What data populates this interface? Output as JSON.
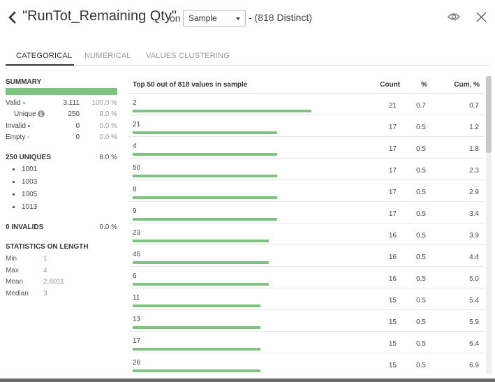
{
  "header": {
    "title": "\"RunTot_Remaining Qty\"",
    "on_label": "on",
    "sample_value": "Sample",
    "distinct": "- (818 Distinct)"
  },
  "tabs": [
    {
      "label": "CATEGORICAL",
      "active": true
    },
    {
      "label": "NUMERICAL",
      "active": false
    },
    {
      "label": "VALUES CLUSTERING",
      "active": false
    }
  ],
  "summary": {
    "title": "SUMMARY",
    "bar_color": "#7cc47f",
    "rows": [
      {
        "label": "Valid",
        "value": "3,111",
        "pct": "100.0 %",
        "dot_color": "#7cc47f"
      },
      {
        "label": "Unique",
        "value": "250",
        "pct": "8.0 %",
        "info_icon": "info-icon"
      },
      {
        "label": "Invalid",
        "value": "0",
        "pct": "0.0 %",
        "dot_color": "#d9534f"
      },
      {
        "label": "Empty",
        "value": "0",
        "pct": "0.0 %",
        "dot_color": "#cccccc"
      }
    ]
  },
  "uniques": {
    "title": "250 UNIQUES",
    "pct": "8.0 %",
    "items": [
      "1001",
      "1003",
      "1005",
      "1013"
    ]
  },
  "invalids": {
    "title": "0 INVALIDS",
    "pct": "0.0 %"
  },
  "length_stats": {
    "title": "STATISTICS ON LENGTH",
    "rows": [
      {
        "label": "Min",
        "value": "1"
      },
      {
        "label": "Max",
        "value": "4"
      },
      {
        "label": "Mean",
        "value": "2.6011"
      },
      {
        "label": "Median",
        "value": "3"
      }
    ]
  },
  "table": {
    "headers": {
      "value": "Top 50 out of 818 values in sample",
      "count": "Count",
      "pct": "%",
      "cum": "Cum. %"
    },
    "bar_color": "#7cc47f",
    "rows": [
      {
        "value": "2",
        "count": "21",
        "pct": "0.7",
        "cum": "0.7",
        "share": 0.7
      },
      {
        "value": "21",
        "count": "17",
        "pct": "0.5",
        "cum": "1.2",
        "share": 0.5
      },
      {
        "value": "4",
        "count": "17",
        "pct": "0.5",
        "cum": "1.8",
        "share": 0.5
      },
      {
        "value": "50",
        "count": "17",
        "pct": "0.5",
        "cum": "2.3",
        "share": 0.5
      },
      {
        "value": "8",
        "count": "17",
        "pct": "0.5",
        "cum": "2.9",
        "share": 0.5
      },
      {
        "value": "9",
        "count": "17",
        "pct": "0.5",
        "cum": "3.4",
        "share": 0.5
      },
      {
        "value": "23",
        "count": "16",
        "pct": "0.5",
        "cum": "3.9",
        "share": 0.5
      },
      {
        "value": "46",
        "count": "16",
        "pct": "0.5",
        "cum": "4.4",
        "share": 0.5
      },
      {
        "value": "6",
        "count": "16",
        "pct": "0.5",
        "cum": "5.0",
        "share": 0.5
      },
      {
        "value": "11",
        "count": "15",
        "pct": "0.5",
        "cum": "5.4",
        "share": 0.5
      },
      {
        "value": "13",
        "count": "15",
        "pct": "0.5",
        "cum": "5.9",
        "share": 0.5
      },
      {
        "value": "17",
        "count": "15",
        "pct": "0.5",
        "cum": "6.4",
        "share": 0.5
      },
      {
        "value": "26",
        "count": "15",
        "pct": "0.5",
        "cum": "6.9",
        "share": 0.5
      }
    ]
  }
}
